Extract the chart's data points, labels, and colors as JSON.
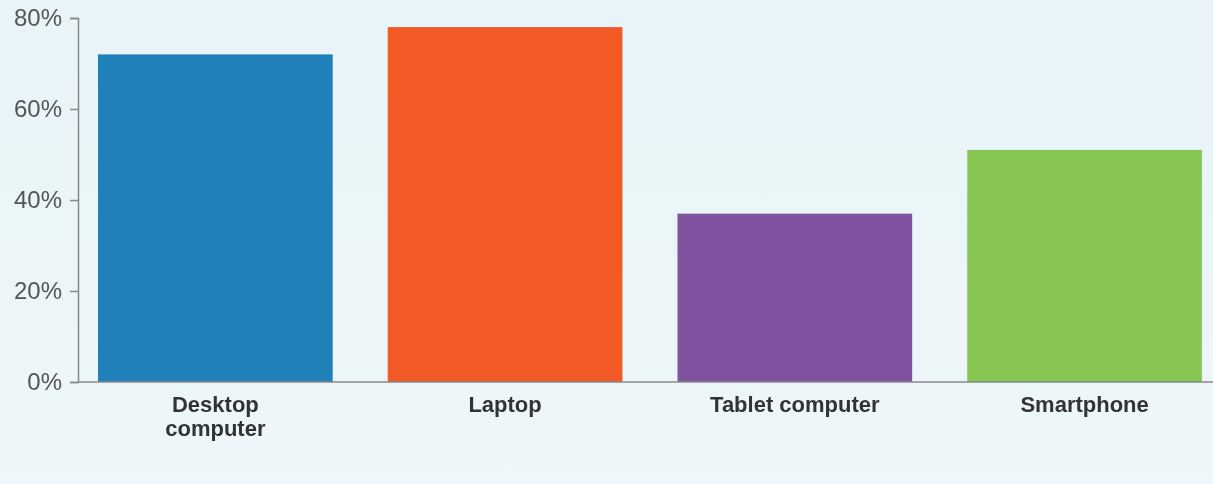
{
  "chart_data": {
    "type": "bar",
    "categories": [
      "Desktop computer",
      "Laptop",
      "Tablet computer",
      "Smartphone"
    ],
    "values": [
      72,
      78,
      37,
      51
    ],
    "colors": [
      "#2080b9",
      "#f15a25",
      "#8052a0",
      "#87c555"
    ],
    "ylim": [
      0,
      80
    ],
    "yticks": [
      {
        "value": 0,
        "label": "0%"
      },
      {
        "value": 20,
        "label": "20%"
      },
      {
        "value": 40,
        "label": "40%"
      },
      {
        "value": 60,
        "label": "60%"
      },
      {
        "value": 80,
        "label": "80%"
      }
    ],
    "grid": false
  }
}
